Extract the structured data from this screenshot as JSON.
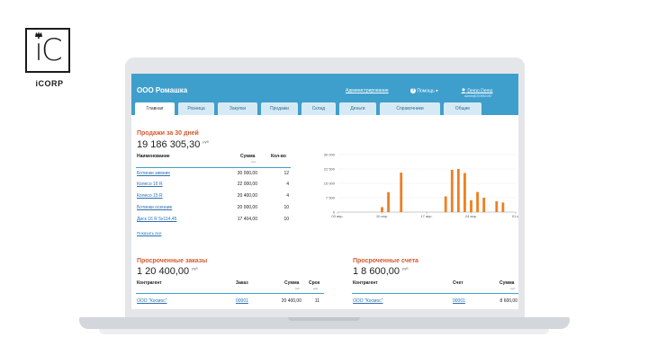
{
  "brand": {
    "logo_text": "iC",
    "caption": "iCORP"
  },
  "header": {
    "title": "ООО Ромашка",
    "admin_link": "Администрирование",
    "help_link": "Помощь ▾",
    "user_name": "Demo Demo",
    "user_email": "admin@203961057"
  },
  "tabs": [
    {
      "label": "Главная",
      "active": true
    },
    {
      "label": "Розница",
      "active": false
    },
    {
      "label": "Закупки",
      "active": false
    },
    {
      "label": "Продажи",
      "active": false
    },
    {
      "label": "Склад",
      "active": false
    },
    {
      "label": "Деньги",
      "active": false
    },
    {
      "label": "Справочники",
      "active": false
    },
    {
      "label": "Общие",
      "active": false
    }
  ],
  "sales": {
    "title": "Продажи за 30 дней",
    "total": "19 186 305,30",
    "currency": "руб",
    "columns": {
      "name": "Наименование",
      "sum": "Сумма",
      "sum_unit": "руб",
      "qty": "Кол-во"
    },
    "rows": [
      {
        "name": "Ботинки зимние",
        "sum": "30 000,00",
        "qty": "12"
      },
      {
        "name": "Колесо 16 R",
        "sum": "22 000,00",
        "qty": "4"
      },
      {
        "name": "Колесо 15 R",
        "sum": "20 400,00",
        "qty": "4"
      },
      {
        "name": "Ботинки осенние",
        "sum": "20 000,00",
        "qty": "10"
      },
      {
        "name": "Диск 16 R 5х114,45",
        "sum": "17 404,00",
        "qty": "10"
      }
    ],
    "show_all": "Показать все"
  },
  "overdue_orders": {
    "title": "Просроченные заказы",
    "total": "1 20 400,00",
    "currency": "руб",
    "columns": {
      "contractor": "Контрагент",
      "order": "Заказ",
      "sum": "Сумма",
      "sum_unit": "руб",
      "term": "Срок",
      "term_unit": "дни"
    },
    "rows": [
      {
        "contractor": "ООО \"Космос\"",
        "order": "00001",
        "sum": "20 400,00",
        "term": "11"
      }
    ]
  },
  "overdue_invoices": {
    "title": "Просроченные счета",
    "total": "1 8 600,00",
    "currency": "руб",
    "columns": {
      "contractor": "Контрагент",
      "invoice": "Счет",
      "sum": "Сумма",
      "sum_unit": "руб"
    },
    "rows": [
      {
        "contractor": "ООО \"Космос\"",
        "invoice": "00001",
        "sum": "8 600,00"
      }
    ]
  },
  "colors": {
    "header": "#3f9fcc",
    "accent": "#d5582c",
    "bar": "#ee7f22",
    "link": "#2a6fb0"
  },
  "chart_data": {
    "type": "bar",
    "title": "",
    "ylim": [
      0,
      30000
    ],
    "y_ticks": [
      "30 000",
      "22 500",
      "15 000",
      "7 500",
      "0"
    ],
    "x_ticks": [
      "03 апр.",
      "10 апр.",
      "17 апр.",
      "24 апр.",
      "01 м"
    ],
    "x_range": [
      3,
      31
    ],
    "x": [
      10,
      11,
      13,
      20,
      21,
      22,
      23,
      24,
      25,
      26,
      28,
      29
    ],
    "values": [
      2600,
      10400,
      20600,
      8200,
      22100,
      22500,
      20400,
      6200,
      10500,
      7500,
      5700,
      5000
    ],
    "grid": true
  }
}
